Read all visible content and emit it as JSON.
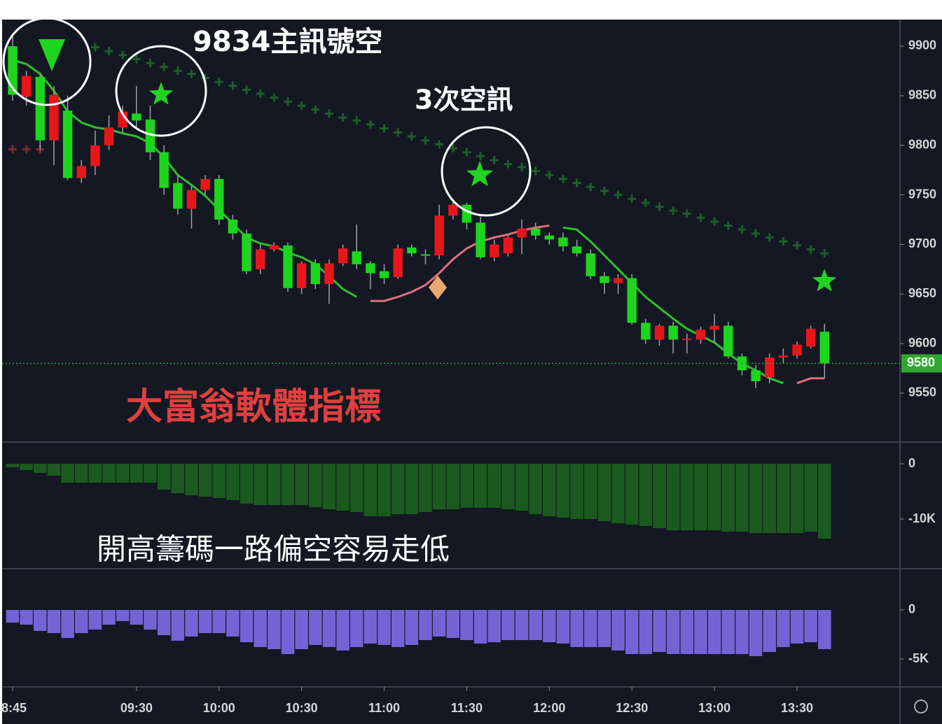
{
  "chart_data": [
    {
      "type": "candlestick",
      "x": [
        525,
        530,
        535,
        540,
        545,
        550,
        555,
        560,
        565,
        570,
        575,
        580,
        585,
        590,
        595,
        600,
        605,
        610,
        615,
        620,
        625,
        630,
        635,
        640,
        645,
        650,
        655,
        660,
        665,
        670,
        675,
        680,
        685,
        690,
        695,
        700,
        705,
        710,
        715,
        720,
        725,
        730,
        735,
        740,
        745,
        750,
        755,
        760,
        765,
        770,
        775,
        780,
        785,
        790,
        795,
        800,
        805,
        810,
        815,
        820
      ],
      "open": [
        9900,
        9849,
        9869,
        9805,
        9835,
        9767,
        9779,
        9800,
        9818,
        9832,
        9826,
        9793,
        9762,
        9736,
        9755,
        9766,
        9725,
        9711,
        9675,
        9695,
        9699,
        9656,
        9681,
        9660,
        9681,
        9693,
        9681,
        9673,
        9667,
        9697,
        9690,
        9689,
        9729,
        9740,
        9722,
        9687,
        9691,
        9707,
        9716,
        9709,
        9707,
        9698,
        9691,
        9668,
        9661,
        9666,
        9621,
        9604,
        9618,
        9604,
        9604,
        9614,
        9618,
        9587,
        9573,
        9566,
        9586,
        9588,
        9597,
        9612
      ],
      "high": [
        9910,
        9875,
        9872,
        9860,
        9850,
        9785,
        9815,
        9830,
        9840,
        9860,
        9840,
        9800,
        9770,
        9760,
        9770,
        9770,
        9730,
        9715,
        9700,
        9702,
        9702,
        9683,
        9685,
        9685,
        9700,
        9720,
        9683,
        9680,
        9700,
        9700,
        9695,
        9740,
        9745,
        9742,
        9728,
        9705,
        9710,
        9725,
        9722,
        9712,
        9712,
        9705,
        9695,
        9672,
        9670,
        9670,
        9625,
        9620,
        9622,
        9610,
        9617,
        9630,
        9622,
        9590,
        9578,
        9590,
        9595,
        9602,
        9618,
        9620
      ],
      "low": [
        9845,
        9840,
        9795,
        9780,
        9765,
        9762,
        9770,
        9795,
        9812,
        9818,
        9785,
        9750,
        9730,
        9716,
        9750,
        9720,
        9705,
        9670,
        9670,
        9693,
        9652,
        9650,
        9655,
        9640,
        9678,
        9675,
        9655,
        9660,
        9665,
        9688,
        9680,
        9685,
        9725,
        9715,
        9685,
        9683,
        9688,
        9690,
        9705,
        9700,
        9693,
        9688,
        9665,
        9650,
        9650,
        9619,
        9600,
        9598,
        9590,
        9590,
        9600,
        9600,
        9585,
        9568,
        9555,
        9560,
        9580,
        9585,
        9595,
        9565
      ],
      "close": [
        9851,
        9870,
        9805,
        9851,
        9767,
        9779,
        9800,
        9818,
        9834,
        9825,
        9793,
        9757,
        9736,
        9755,
        9766,
        9725,
        9711,
        9673,
        9695,
        9699,
        9656,
        9681,
        9660,
        9681,
        9696,
        9680,
        9671,
        9666,
        9696,
        9691,
        9689,
        9729,
        9740,
        9722,
        9687,
        9700,
        9707,
        9716,
        9709,
        9705,
        9698,
        9691,
        9668,
        9661,
        9666,
        9621,
        9604,
        9618,
        9604,
        9605,
        9614,
        9618,
        9587,
        9573,
        9562,
        9586,
        9588,
        9599,
        9615,
        9580
      ],
      "up_color": "#e8161b",
      "down_color": "#1ed51e",
      "lines": [
        {
          "color": "#2fbf2f",
          "values": [
            9886,
            9882,
            9872,
            9855,
            9834,
            9823,
            9818,
            9816,
            9812,
            9809,
            9802,
            9788,
            9770,
            9760,
            9749,
            9735,
            9721,
            9707,
            9701,
            9698,
            9692,
            9687,
            9680,
            9668,
            9655,
            9647,
            null,
            null,
            null,
            null,
            null,
            null,
            null,
            null,
            null,
            null,
            null,
            null,
            null,
            null,
            9717,
            9715,
            9703,
            9689,
            9675,
            9661,
            9647,
            9636,
            9625,
            9615,
            9608,
            9601,
            9590,
            9580,
            9573,
            9565,
            9560,
            null,
            null,
            null
          ]
        },
        {
          "color": "#e0707a",
          "values": [
            null,
            null,
            null,
            null,
            null,
            null,
            null,
            null,
            null,
            null,
            null,
            null,
            null,
            null,
            null,
            null,
            null,
            null,
            null,
            null,
            null,
            null,
            null,
            null,
            null,
            null,
            9643,
            9643,
            9647,
            9652,
            9659,
            9671,
            9685,
            9696,
            9703,
            9707,
            9710,
            9714,
            9717,
            9719,
            null,
            null,
            null,
            null,
            null,
            null,
            null,
            null,
            null,
            null,
            null,
            null,
            null,
            null,
            null,
            null,
            null,
            9560,
            9565,
            9565
          ]
        }
      ],
      "markers": [
        {
          "color": "#1e5e28",
          "values": [
            null,
            null,
            null,
            null,
            null,
            null,
            9899,
            9895,
            9891,
            9887,
            9883,
            9879,
            9875,
            9872,
            9868,
            9864,
            9860,
            9856,
            9852,
            9848,
            9844,
            9840,
            9836,
            9832,
            9828,
            9825,
            9821,
            9817,
            9813,
            9809,
            9805,
            9801,
            9797,
            9793,
            9789,
            9785,
            9781,
            9778,
            9774,
            9770,
            9766,
            9762,
            9758,
            9754,
            9750,
            9746,
            9742,
            9738,
            9734,
            9731,
            9727,
            9723,
            9719,
            9715,
            9711,
            9707,
            9703,
            9699,
            9695,
            9691
          ]
        },
        {
          "color": "#7a2a2e",
          "values": [
            9796,
            9796,
            9796,
            null,
            null,
            null,
            null,
            null,
            null,
            null,
            null,
            null,
            null,
            null,
            null,
            null,
            null,
            null,
            null,
            null,
            null,
            null,
            null,
            null,
            null,
            null,
            null,
            null,
            null,
            null,
            null,
            null,
            null,
            null,
            null,
            null,
            null,
            null,
            null,
            null,
            null,
            null,
            null,
            null,
            null,
            null,
            null,
            null,
            null,
            null,
            null,
            null,
            null,
            null,
            null,
            null,
            null,
            null,
            null,
            null
          ]
        }
      ],
      "last_price": 9580,
      "last_price_color": "#2ea82e",
      "xlim": [
        521.18,
        847.4
      ],
      "xticks": [
        {
          "value": 525,
          "label": "8:45"
        },
        {
          "value": 570,
          "label": "09:30"
        },
        {
          "value": 600,
          "label": "10:00"
        },
        {
          "value": 630,
          "label": "10:30"
        },
        {
          "value": 660,
          "label": "11:00"
        },
        {
          "value": 690,
          "label": "11:30"
        },
        {
          "value": 720,
          "label": "12:00"
        },
        {
          "value": 750,
          "label": "12:30"
        },
        {
          "value": 780,
          "label": "13:00"
        },
        {
          "value": 810,
          "label": "13:30"
        }
      ],
      "ylim": [
        9500.6,
        9926.8
      ],
      "yticks": [
        9550,
        9600,
        9650,
        9700,
        9750,
        9800,
        9850,
        9900
      ],
      "annotations": [
        "9834主訊號空",
        "3次空訊",
        "大富翁軟體指標"
      ]
    },
    {
      "type": "bar",
      "color": "#1b5a1e",
      "values": [
        -630,
        -1140,
        -1650,
        -2150,
        -3420,
        -3420,
        -3420,
        -3420,
        -3420,
        -3420,
        -3420,
        -4680,
        -5320,
        -5700,
        -5950,
        -6200,
        -6580,
        -7220,
        -7470,
        -7470,
        -7470,
        -7470,
        -7850,
        -8230,
        -8480,
        -8730,
        -9490,
        -9490,
        -9110,
        -9110,
        -8730,
        -8230,
        -8230,
        -7970,
        -7970,
        -7970,
        -8230,
        -8480,
        -9110,
        -9490,
        -9750,
        -10000,
        -10000,
        -10380,
        -10760,
        -11010,
        -11270,
        -11650,
        -12030,
        -12030,
        -12030,
        -12030,
        -12280,
        -12280,
        -12530,
        -12530,
        -12530,
        -12530,
        -12280,
        -13540
      ],
      "ylim": [
        -18987,
        3924
      ],
      "yticks": [
        0,
        {
          "value": -10000,
          "label": "-10K"
        }
      ],
      "annotations": [
        "開高籌碼一路偏空容易走低"
      ]
    },
    {
      "type": "bar",
      "color": "#7563d6",
      "values": [
        -1290,
        -1500,
        -2140,
        -2360,
        -2860,
        -2360,
        -2000,
        -1500,
        -1140,
        -1500,
        -2000,
        -2570,
        -3140,
        -2710,
        -2360,
        -2360,
        -2710,
        -3290,
        -3790,
        -4000,
        -4500,
        -4000,
        -3570,
        -3790,
        -4140,
        -3790,
        -3430,
        -3570,
        -3790,
        -3570,
        -3070,
        -2710,
        -2860,
        -3070,
        -3430,
        -3290,
        -3070,
        -3070,
        -3070,
        -3290,
        -3430,
        -3790,
        -3790,
        -3790,
        -4140,
        -4500,
        -4500,
        -4290,
        -4500,
        -4500,
        -4500,
        -4500,
        -4500,
        -4500,
        -4710,
        -4290,
        -3790,
        -3430,
        -3290,
        -4000
      ],
      "ylim": [
        -7857,
        4214
      ],
      "yticks": [
        0,
        {
          "value": -5000,
          "label": "-5K"
        }
      ]
    }
  ]
}
